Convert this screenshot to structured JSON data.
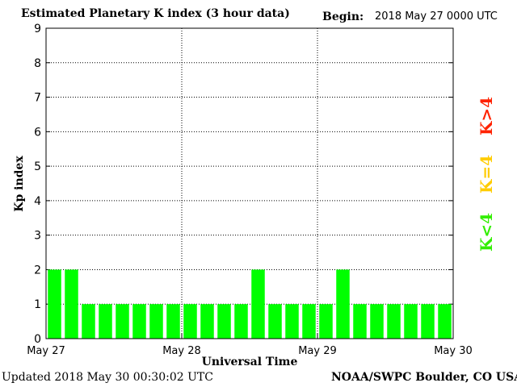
{
  "header": {
    "title": "Estimated Planetary K index (3 hour data)",
    "begin_label": "Begin:",
    "begin_value": "2018 May 27 0000 UTC"
  },
  "footer": {
    "updated": "Updated 2018 May 30 00:30:02 UTC",
    "source": "NOAA/SWPC Boulder, CO USA"
  },
  "legend": {
    "high": {
      "label": "K>4",
      "color": "#ff2200"
    },
    "equal": {
      "label": "K=4",
      "color": "#ffcc00"
    },
    "low": {
      "label": "K<4",
      "color": "#33ee00"
    }
  },
  "chart_data": {
    "type": "bar",
    "title": "Estimated Planetary K index (3 hour data)",
    "xlabel": "Universal Time",
    "ylabel": "Kp index",
    "ylim": [
      0,
      9
    ],
    "yticks": [
      0,
      1,
      2,
      3,
      4,
      5,
      6,
      7,
      8,
      9
    ],
    "xticks": [
      "May 27",
      "May 28",
      "May 29",
      "May 30"
    ],
    "grid": true,
    "bar_color": "#00ff00",
    "values": [
      2,
      2,
      1,
      1,
      1,
      1,
      1,
      1,
      1,
      1,
      1,
      1,
      2,
      1,
      1,
      1,
      1,
      2,
      1,
      1,
      1,
      1,
      1,
      1
    ]
  }
}
